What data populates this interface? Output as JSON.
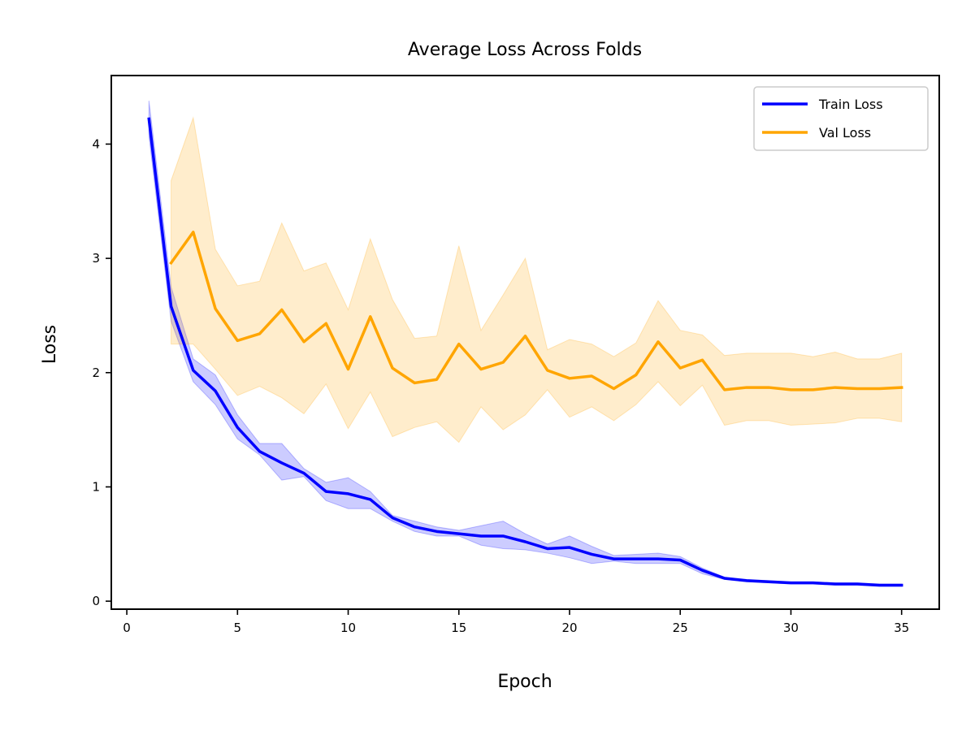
{
  "chart_data": {
    "type": "line",
    "title": "Average Loss Across Folds",
    "xlabel": "Epoch",
    "ylabel": "Loss",
    "xlim": [
      -0.7,
      36.7
    ],
    "ylim": [
      -0.07,
      4.6
    ],
    "x_ticks": [
      0,
      5,
      10,
      15,
      20,
      25,
      30,
      35
    ],
    "y_ticks": [
      0,
      1,
      2,
      3,
      4
    ],
    "grid": false,
    "legend_position": "top-right",
    "series": [
      {
        "name": "Train Loss",
        "color": "#0000ff",
        "x": [
          1,
          2,
          3,
          4,
          5,
          6,
          7,
          8,
          9,
          10,
          11,
          12,
          13,
          14,
          15,
          16,
          17,
          18,
          19,
          20,
          21,
          22,
          23,
          24,
          25,
          26,
          27,
          28,
          29,
          30,
          31,
          32,
          33,
          34,
          35
        ],
        "values": [
          4.22,
          2.58,
          2.02,
          1.84,
          1.52,
          1.31,
          1.21,
          1.12,
          0.96,
          0.94,
          0.89,
          0.73,
          0.65,
          0.61,
          0.59,
          0.57,
          0.57,
          0.52,
          0.46,
          0.47,
          0.41,
          0.37,
          0.37,
          0.37,
          0.36,
          0.27,
          0.2,
          0.18,
          0.17,
          0.16,
          0.16,
          0.15,
          0.15,
          0.14,
          0.14
        ],
        "lower": [
          4.07,
          2.45,
          1.92,
          1.72,
          1.42,
          1.28,
          1.06,
          1.09,
          0.88,
          0.81,
          0.81,
          0.7,
          0.61,
          0.57,
          0.57,
          0.49,
          0.46,
          0.45,
          0.42,
          0.38,
          0.33,
          0.35,
          0.33,
          0.33,
          0.33,
          0.24,
          0.19,
          0.17,
          0.16,
          0.15,
          0.15,
          0.14,
          0.14,
          0.13,
          0.13
        ],
        "upper": [
          4.38,
          2.75,
          2.12,
          1.98,
          1.63,
          1.38,
          1.38,
          1.16,
          1.04,
          1.08,
          0.96,
          0.75,
          0.7,
          0.65,
          0.62,
          0.66,
          0.7,
          0.59,
          0.5,
          0.57,
          0.48,
          0.4,
          0.41,
          0.42,
          0.39,
          0.29,
          0.21,
          0.19,
          0.18,
          0.17,
          0.17,
          0.16,
          0.16,
          0.15,
          0.15
        ]
      },
      {
        "name": "Val Loss",
        "color": "#ffa500",
        "x": [
          2,
          3,
          4,
          5,
          6,
          7,
          8,
          9,
          10,
          11,
          12,
          13,
          14,
          15,
          16,
          17,
          18,
          19,
          20,
          21,
          22,
          23,
          24,
          25,
          26,
          27,
          28,
          29,
          30,
          31,
          32,
          33,
          34,
          35
        ],
        "values": [
          2.96,
          3.23,
          2.56,
          2.28,
          2.34,
          2.55,
          2.27,
          2.43,
          2.03,
          2.49,
          2.04,
          1.91,
          1.94,
          2.25,
          2.03,
          2.09,
          2.32,
          2.02,
          1.95,
          1.97,
          1.86,
          1.98,
          2.27,
          2.04,
          2.11,
          1.85,
          1.87,
          1.87,
          1.85,
          1.85,
          1.87,
          1.86,
          1.86,
          1.87
        ],
        "lower": [
          2.25,
          2.25,
          2.03,
          1.8,
          1.88,
          1.78,
          1.64,
          1.9,
          1.51,
          1.83,
          1.44,
          1.52,
          1.57,
          1.39,
          1.7,
          1.5,
          1.63,
          1.85,
          1.61,
          1.7,
          1.58,
          1.72,
          1.92,
          1.71,
          1.89,
          1.54,
          1.58,
          1.58,
          1.54,
          1.55,
          1.56,
          1.6,
          1.6,
          1.57
        ],
        "upper": [
          3.68,
          4.23,
          3.08,
          2.76,
          2.8,
          3.31,
          2.89,
          2.96,
          2.55,
          3.17,
          2.64,
          2.3,
          2.32,
          3.11,
          2.37,
          2.68,
          3.0,
          2.2,
          2.29,
          2.25,
          2.14,
          2.26,
          2.63,
          2.37,
          2.33,
          2.15,
          2.17,
          2.17,
          2.17,
          2.14,
          2.18,
          2.12,
          2.12,
          2.17
        ]
      }
    ]
  }
}
